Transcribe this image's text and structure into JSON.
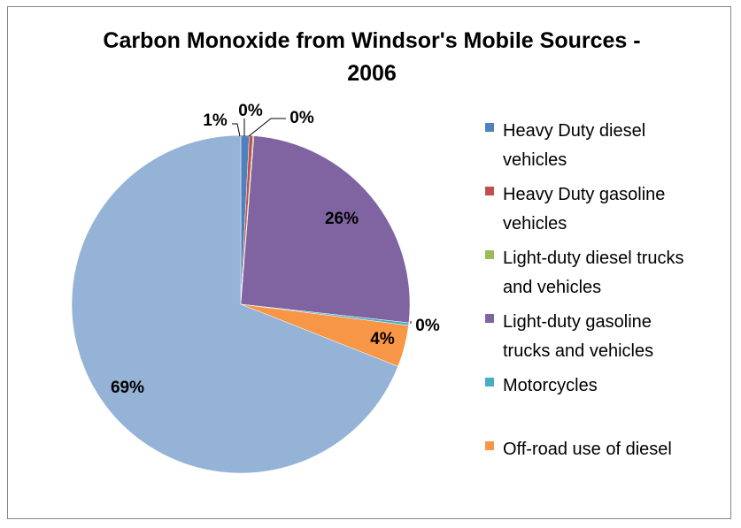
{
  "chart_data": {
    "type": "pie",
    "title": "Carbon Monoxide from Windsor's Mobile Sources - 2006",
    "title_lines": [
      "Carbon Monoxide from Windsor's Mobile Sources -",
      "2006"
    ],
    "legend_position": "right",
    "slices": [
      {
        "name": "Heavy Duty diesel vehicles",
        "value": 0.8,
        "label": "1%",
        "color": "#4F81BD"
      },
      {
        "name": "Heavy Duty gasoline vehicles",
        "value": 0.35,
        "label": "0%",
        "color": "#C0504D"
      },
      {
        "name": "Light-duty diesel trucks and vehicles",
        "value": 0.1,
        "label": "0%",
        "color": "#9BBB59"
      },
      {
        "name": "Light-duty gasoline trucks and vehicles",
        "value": 25.5,
        "label": "26%",
        "color": "#8064A2"
      },
      {
        "name": "Motorcycles",
        "value": 0.25,
        "label": "0%",
        "color": "#4BACC6"
      },
      {
        "name": "Off-road use of diesel",
        "value": 4.0,
        "label": "4%",
        "color": "#F79646"
      },
      {
        "name": "",
        "value": 69.0,
        "label": "69%",
        "color": "#95B3D7"
      }
    ],
    "legend": [
      {
        "lines": [
          "Heavy Duty diesel",
          "vehicles"
        ],
        "color": "#4F81BD"
      },
      {
        "lines": [
          "Heavy Duty gasoline",
          "vehicles"
        ],
        "color": "#C0504D"
      },
      {
        "lines": [
          "Light-duty diesel trucks",
          "and vehicles"
        ],
        "color": "#9BBB59"
      },
      {
        "lines": [
          "Light-duty gasoline",
          "trucks and vehicles"
        ],
        "color": "#8064A2"
      },
      {
        "lines": [
          "Motorcycles"
        ],
        "color": "#4BACC6"
      },
      {
        "lines": [
          "Off-road use of diesel"
        ],
        "color": "#F79646"
      }
    ]
  }
}
